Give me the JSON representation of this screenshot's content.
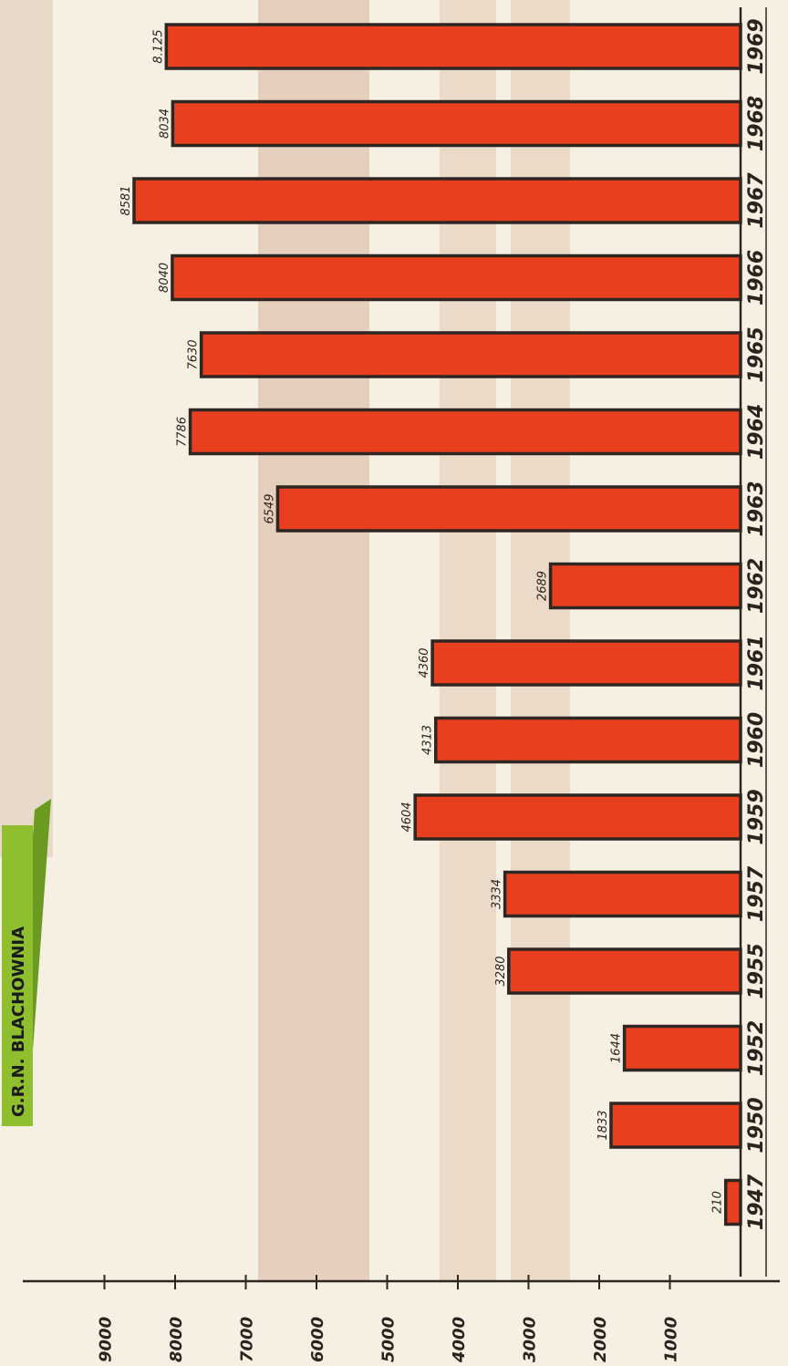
{
  "chart_data": {
    "type": "bar",
    "orientation": "horizontal",
    "title": "G.R.N. BLACHOWNIA",
    "categories": [
      "1947",
      "1950",
      "1952",
      "1955",
      "1957",
      "1959",
      "1960",
      "1961",
      "1962",
      "1963",
      "1964",
      "1965",
      "1966",
      "1967",
      "1968",
      "1969"
    ],
    "values": [
      210,
      1833,
      1644,
      3280,
      3334,
      4604,
      4313,
      4360,
      2689,
      6549,
      7786,
      7630,
      8040,
      8581,
      8034,
      8125
    ],
    "value_labels": [
      "210",
      "1833",
      "1644",
      "3280",
      "3334",
      "4604",
      "4313",
      "4360",
      "2689",
      "6549",
      "7786",
      "7630",
      "8040",
      "8581",
      "8034",
      "8.125"
    ],
    "value_axis": {
      "range": [
        0,
        9000
      ],
      "ticks": [
        1000,
        2000,
        3000,
        4000,
        5000,
        6000,
        7000,
        8000,
        9000
      ],
      "tick_labels": [
        "1000",
        "2000",
        "3000",
        "4000",
        "5000",
        "6000",
        "7000",
        "8000",
        "9000"
      ]
    },
    "xlabel": "",
    "ylabel": "",
    "grid": false,
    "legend": "none",
    "colors": {
      "bar_fill": "#e8401e",
      "bar_outline": "#2e2622",
      "background": "#f6f0e2",
      "stripe": "#cfa88e",
      "title_panel": "#8fbe2e"
    }
  }
}
